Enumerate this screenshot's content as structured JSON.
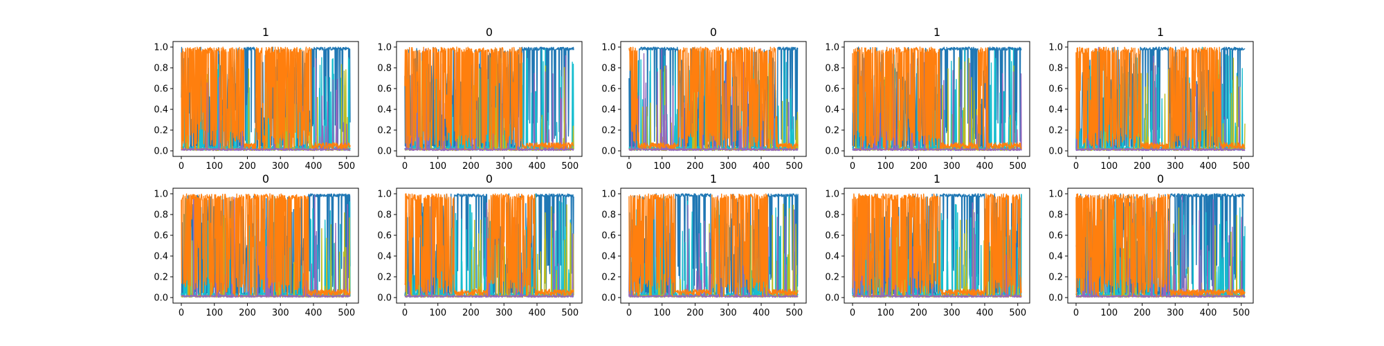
{
  "figure": {
    "background": "#ffffff",
    "series_colors": [
      "#1f77b4",
      "#17becf",
      "#bcbd22",
      "#9467bd",
      "#ff7f0e"
    ]
  },
  "chart_data": [
    {
      "type": "line",
      "title": "1",
      "x_range": [
        0,
        511
      ],
      "ylim": [
        0,
        1
      ],
      "xticks": [
        0,
        100,
        200,
        300,
        400,
        500
      ],
      "yticks": [
        0.0,
        0.2,
        0.4,
        0.6,
        0.8,
        1.0
      ],
      "dominant_series": "#ff7f0e",
      "dominant_segments": [
        [
          0,
          190,
          "high"
        ],
        [
          190,
          225,
          "low"
        ],
        [
          225,
          395,
          "high"
        ],
        [
          395,
          511,
          "low"
        ]
      ]
    },
    {
      "type": "line",
      "title": "0",
      "x_range": [
        0,
        511
      ],
      "ylim": [
        0,
        1
      ],
      "xticks": [
        0,
        100,
        200,
        300,
        400,
        500
      ],
      "yticks": [
        0.0,
        0.2,
        0.4,
        0.6,
        0.8,
        1.0
      ],
      "dominant_series": "#ff7f0e",
      "dominant_segments": [
        [
          0,
          355,
          "high"
        ],
        [
          355,
          511,
          "low"
        ]
      ]
    },
    {
      "type": "line",
      "title": "0",
      "x_range": [
        0,
        511
      ],
      "ylim": [
        0,
        1
      ],
      "xticks": [
        0,
        100,
        200,
        300,
        400,
        500
      ],
      "yticks": [
        0.0,
        0.2,
        0.4,
        0.6,
        0.8,
        1.0
      ],
      "dominant_series": "#ff7f0e",
      "dominant_segments": [
        [
          0,
          30,
          "high"
        ],
        [
          30,
          150,
          "low"
        ],
        [
          150,
          450,
          "high"
        ],
        [
          450,
          511,
          "low"
        ]
      ]
    },
    {
      "type": "line",
      "title": "1",
      "x_range": [
        0,
        511
      ],
      "ylim": [
        0,
        1
      ],
      "xticks": [
        0,
        100,
        200,
        300,
        400,
        500
      ],
      "yticks": [
        0.0,
        0.2,
        0.4,
        0.6,
        0.8,
        1.0
      ],
      "dominant_series": "#ff7f0e",
      "dominant_segments": [
        [
          0,
          265,
          "high"
        ],
        [
          265,
          380,
          "low"
        ],
        [
          380,
          410,
          "high"
        ],
        [
          410,
          511,
          "low"
        ]
      ]
    },
    {
      "type": "line",
      "title": "1",
      "x_range": [
        0,
        511
      ],
      "ylim": [
        0,
        1
      ],
      "xticks": [
        0,
        100,
        200,
        300,
        400,
        500
      ],
      "yticks": [
        0.0,
        0.2,
        0.4,
        0.6,
        0.8,
        1.0
      ],
      "dominant_series": "#ff7f0e",
      "dominant_segments": [
        [
          0,
          195,
          "high"
        ],
        [
          195,
          280,
          "low"
        ],
        [
          280,
          440,
          "high"
        ],
        [
          440,
          511,
          "low"
        ]
      ]
    },
    {
      "type": "line",
      "title": "0",
      "x_range": [
        0,
        511
      ],
      "ylim": [
        0,
        1
      ],
      "xticks": [
        0,
        100,
        200,
        300,
        400,
        500
      ],
      "yticks": [
        0.0,
        0.2,
        0.4,
        0.6,
        0.8,
        1.0
      ],
      "dominant_series": "#ff7f0e",
      "dominant_segments": [
        [
          0,
          385,
          "high"
        ],
        [
          385,
          511,
          "low"
        ]
      ]
    },
    {
      "type": "line",
      "title": "0",
      "x_range": [
        0,
        511
      ],
      "ylim": [
        0,
        1
      ],
      "xticks": [
        0,
        100,
        200,
        300,
        400,
        500
      ],
      "yticks": [
        0.0,
        0.2,
        0.4,
        0.6,
        0.8,
        1.0
      ],
      "dominant_series": "#ff7f0e",
      "dominant_segments": [
        [
          0,
          150,
          "high"
        ],
        [
          150,
          250,
          "low"
        ],
        [
          250,
          395,
          "high"
        ],
        [
          395,
          511,
          "low"
        ]
      ]
    },
    {
      "type": "line",
      "title": "1",
      "x_range": [
        0,
        511
      ],
      "ylim": [
        0,
        1
      ],
      "xticks": [
        0,
        100,
        200,
        300,
        400,
        500
      ],
      "yticks": [
        0.0,
        0.2,
        0.4,
        0.6,
        0.8,
        1.0
      ],
      "dominant_series": "#ff7f0e",
      "dominant_segments": [
        [
          0,
          140,
          "high"
        ],
        [
          140,
          250,
          "low"
        ],
        [
          250,
          420,
          "high"
        ],
        [
          420,
          511,
          "low"
        ]
      ]
    },
    {
      "type": "line",
      "title": "1",
      "x_range": [
        0,
        511
      ],
      "ylim": [
        0,
        1
      ],
      "xticks": [
        0,
        100,
        200,
        300,
        400,
        500
      ],
      "yticks": [
        0.0,
        0.2,
        0.4,
        0.6,
        0.8,
        1.0
      ],
      "dominant_series": "#ff7f0e",
      "dominant_segments": [
        [
          0,
          265,
          "high"
        ],
        [
          265,
          400,
          "low"
        ],
        [
          400,
          511,
          "high"
        ]
      ]
    },
    {
      "type": "line",
      "title": "0",
      "x_range": [
        0,
        511
      ],
      "ylim": [
        0,
        1
      ],
      "xticks": [
        0,
        100,
        200,
        300,
        400,
        500
      ],
      "yticks": [
        0.0,
        0.2,
        0.4,
        0.6,
        0.8,
        1.0
      ],
      "dominant_series": "#ff7f0e",
      "dominant_segments": [
        [
          0,
          285,
          "high"
        ],
        [
          285,
          390,
          "low"
        ],
        [
          390,
          511,
          "low"
        ]
      ]
    }
  ]
}
